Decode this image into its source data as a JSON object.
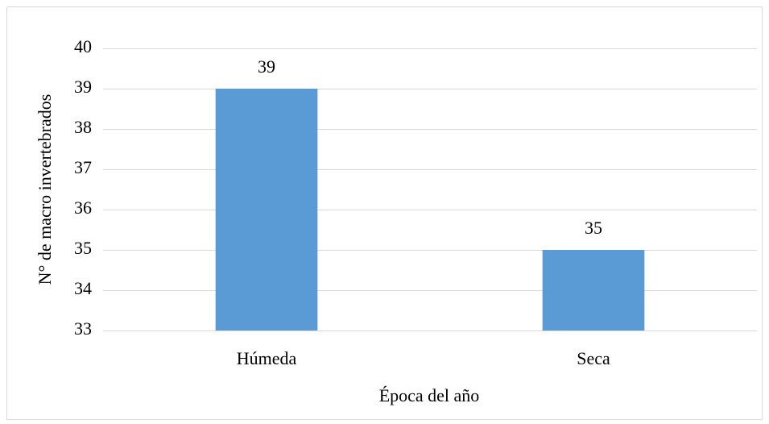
{
  "chart_data": {
    "type": "bar",
    "categories": [
      "Húmeda",
      "Seca"
    ],
    "values": [
      39,
      35
    ],
    "color": "#5b9bd5",
    "ylim": [
      33,
      40
    ],
    "yticks": [
      33,
      34,
      35,
      36,
      37,
      38,
      39,
      40
    ],
    "grid": true,
    "xlabel": "Época del año",
    "ylabel": "N° de macro invertebrados",
    "data_labels": true
  }
}
